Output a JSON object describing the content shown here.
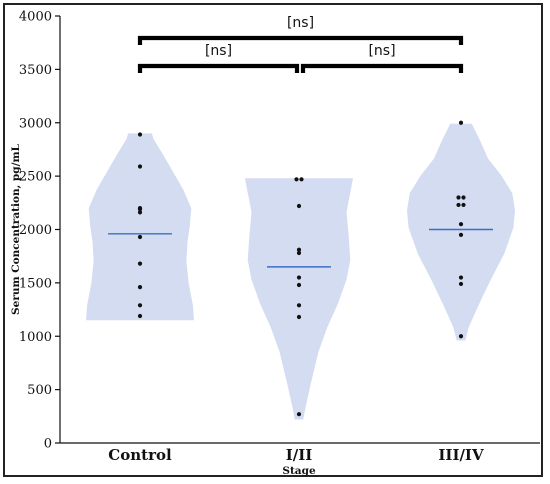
{
  "chart_data": {
    "type": "violin",
    "ylabel": "Serum Concentration, pg/mL",
    "xlabel": "Stage",
    "ylim": [
      0,
      4000
    ],
    "yticks": [
      "0",
      "500",
      "1000",
      "1500",
      "2000",
      "2500",
      "3000",
      "3500",
      "4000"
    ],
    "grid": false,
    "categories": [
      "Control",
      "I/II",
      "III/IV"
    ],
    "violin_color": "#d4dcf2",
    "median_color": "#3a6fc4",
    "groups": [
      {
        "category": "Control",
        "median": 1960,
        "range": [
          1150,
          2900
        ],
        "points": [
          2890,
          2590,
          2200,
          2190,
          2160,
          1930,
          1680,
          1460,
          1290,
          1190
        ]
      },
      {
        "category": "I/II",
        "median": 1650,
        "range": [
          220,
          2480
        ],
        "points": [
          2470,
          2470,
          2220,
          1810,
          1780,
          1550,
          1480,
          1290,
          1180,
          270
        ]
      },
      {
        "category": "III/IV",
        "median": 2000,
        "range": [
          960,
          2990
        ],
        "points": [
          3000,
          2300,
          2300,
          2230,
          2230,
          2050,
          1950,
          1550,
          1490,
          1000
        ]
      }
    ],
    "comparisons": [
      {
        "from": "Control",
        "to": "III/IV",
        "label": "[ns]"
      },
      {
        "from": "Control",
        "to": "I/II",
        "label": "[ns]"
      },
      {
        "from": "I/II",
        "to": "III/IV",
        "label": "[ns]"
      }
    ]
  }
}
